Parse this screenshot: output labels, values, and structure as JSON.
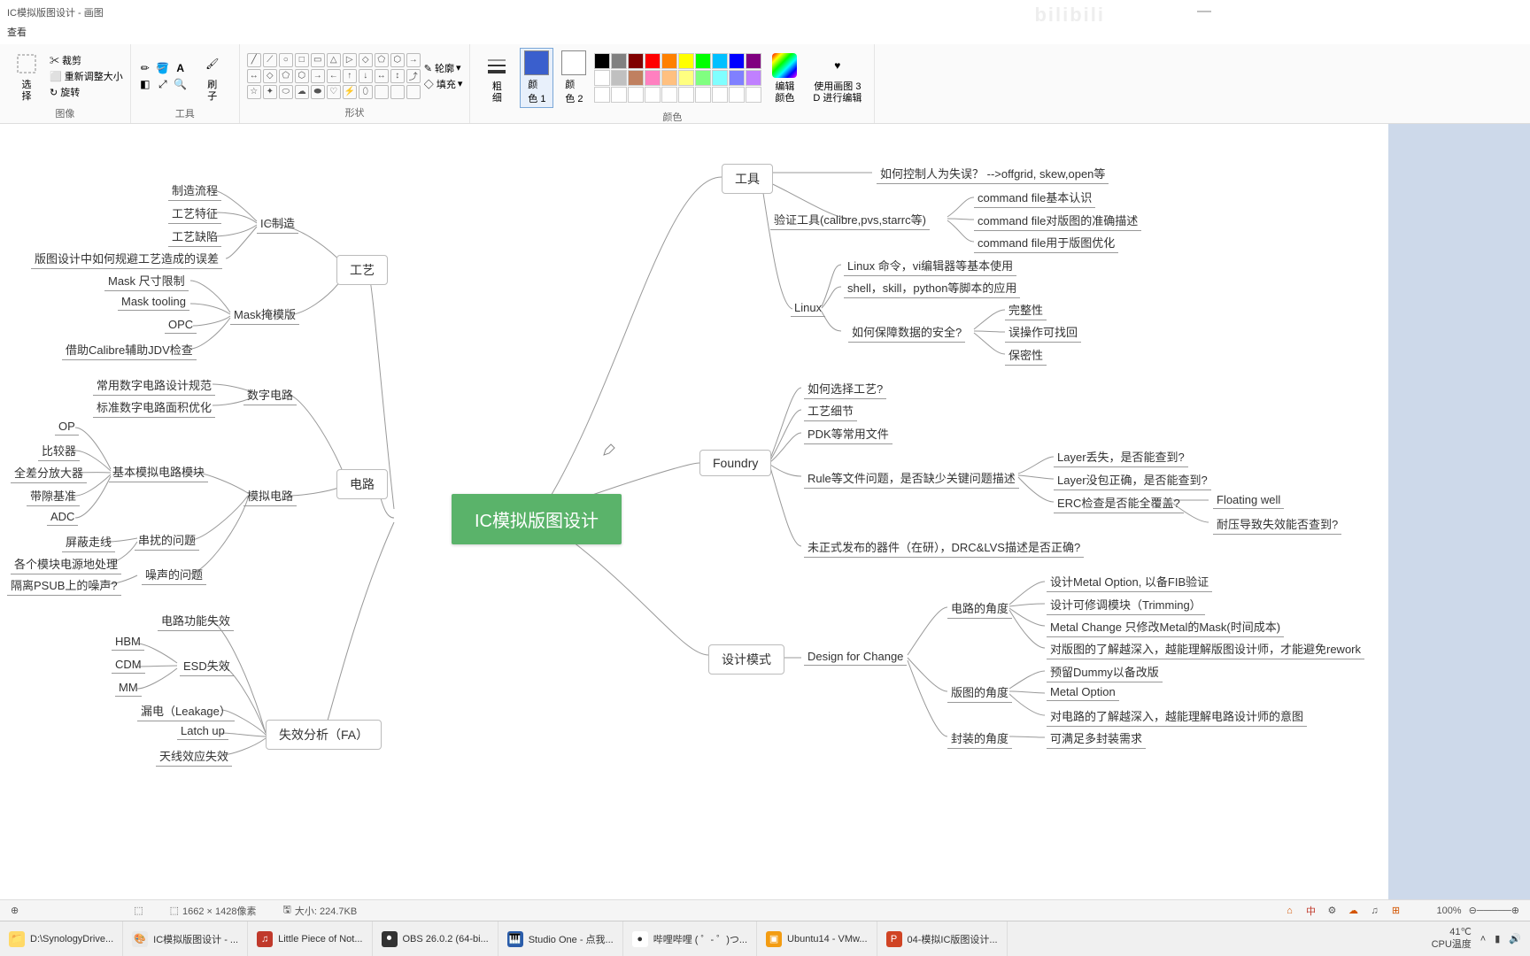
{
  "window": {
    "title": "IC模拟版图设计 - 画图",
    "watermark": "bilibili"
  },
  "menubar": {
    "view": "查看"
  },
  "ribbon": {
    "groups": {
      "image": {
        "label": "图像",
        "select": "选\n择",
        "crop": "✂ 裁剪",
        "resize": "⬜ 重新调整大小",
        "rotate": "↻ 旋转"
      },
      "tools": {
        "label": "工具",
        "brush": "刷\n子"
      },
      "shapes": {
        "label": "形状",
        "outline": "✎ 轮廓",
        "fill": "◇ 填充"
      },
      "colors": {
        "label": "颜色",
        "thick": "粗\n细",
        "c1": "颜\n色 1",
        "c2": "颜\n色 2",
        "edit": "编辑\n颜色",
        "use3d": "使用画图 3\nD 进行编辑"
      }
    },
    "palette": [
      "#000000",
      "#808080",
      "#800000",
      "#ff0000",
      "#ff8000",
      "#ffff00",
      "#00ff00",
      "#00c0ff",
      "#0000ff",
      "#800080",
      "#ffffff",
      "#c0c0c0",
      "#c08060",
      "#ff80c0",
      "#ffc080",
      "#ffff80",
      "#80ff80",
      "#80ffff",
      "#8080ff",
      "#c080ff",
      "#ffffff",
      "#ffffff",
      "#ffffff",
      "#ffffff",
      "#ffffff",
      "#ffffff",
      "#ffffff",
      "#ffffff",
      "#ffffff",
      "#ffffff"
    ],
    "color1": "#3a5fcd",
    "color2": "#ffffff",
    "editgrad": "linear-gradient(135deg,#ff0000,#ffff00,#00ff00,#00ffff,#0000ff,#ff00ff)"
  },
  "mindmap": {
    "center": "IC模拟版图设计",
    "branches": {
      "gongju": "工具",
      "gongyi": "工艺",
      "dianlu": "电路",
      "foundry": "Foundry",
      "shixiaofenxi": "失效分析（FA）",
      "shejimoshi": "设计模式"
    },
    "left": {
      "ic_zhizao": "IC制造",
      "zhizao_liucheng": "制造流程",
      "gongyi_tezheng": "工艺特征",
      "gongyi_quexian": "工艺缺陷",
      "bantu_guibi": "版图设计中如何规避工艺造成的误差",
      "mask_yanmuban": "Mask掩模版",
      "mask_chicun": "Mask 尺寸限制",
      "mask_tooling": "Mask tooling",
      "opc": "OPC",
      "jiezhu_calibre": "借助Calibre辅助JDV检查",
      "shuzi_dianlu": "数字电路",
      "changyong_shuzi": "常用数字电路设计规范",
      "biaozhun_shuzi": "标准数字电路面积优化",
      "moni_dianlu": "模拟电路",
      "jiben_moni": "基本模拟电路模块",
      "op": "OP",
      "bijiaoqi": "比较器",
      "quancha": "全差分放大器",
      "daixi": "带隙基准",
      "adc": "ADC",
      "chuanrao": "串扰的问题",
      "pingbi": "屏蔽走线",
      "gege_dianyuan": "各个模块电源地处理",
      "zaosheng": "噪声的问题",
      "geli_psub": "隔离PSUB上的噪声?",
      "dianlu_shixiao": "电路功能失效",
      "esd_shixiao": "ESD失效",
      "hbm": "HBM",
      "cdm": "CDM",
      "mm": "MM",
      "loudian": "漏电（Leakage）",
      "latchup": "Latch up",
      "tianxian": "天线效应失效"
    },
    "right": {
      "kongzhi_renwei": "如何控制人为失误？ -->offgrid, skew,open等",
      "yanzheng_gongju": "验证工具(calibre,pvs,starrc等)",
      "cmd_jiben": "command file基本认识",
      "cmd_zhunque": "command file对版图的准确描述",
      "cmd_youhua": "command file用于版图优化",
      "linux": "Linux",
      "linux_mingling": "Linux 命令，vi编辑器等基本使用",
      "shell_skill": "shell，skill，python等脚本的应用",
      "ruhe_baozhang": "如何保障数据的安全?",
      "wanzheng": "完整性",
      "wucao": "误操作可找回",
      "baomi": "保密性",
      "ruhe_xuanze": "如何选择工艺?",
      "gongyi_xijie": "工艺细节",
      "pdk_changyong": "PDK等常用文件",
      "rule_wenti": "Rule等文件问题，是否缺少关键问题描述",
      "layer_diushi": "Layer丢失，是否能查到?",
      "layer_meibao": "Layer没包正确，是否能查到?",
      "erc_jiancha": "ERC检查是否能全覆盖?",
      "floating_well": "Floating well",
      "naiya": "耐压导致失效能否查到?",
      "weizhengshi": "未正式发布的器件（在研），DRC&LVS描述是否正确?",
      "dfc": "Design for Change",
      "dianlu_jiaodu": "电路的角度",
      "sheji_metal_opt": "设计Metal Option, 以备FIB验证",
      "sheji_xiutiao": "设计可修调模块（Trimming）",
      "metal_change": "Metal Change 只修改Metal的Mask(时间成本)",
      "dui_bantu_liaojie": "对版图的了解越深入，越能理解版图设计师，才能避免rework",
      "bantu_jiaodu": "版图的角度",
      "yuliu_dummy": "预留Dummy以备改版",
      "metal_option": "Metal Option",
      "dui_dianlu_liaojie": "对电路的了解越深入，越能理解电路设计师的意图",
      "fengzhuang_jiaodu": "封装的角度",
      "kemanzhu": "可满足多封装需求"
    }
  },
  "statusbar": {
    "dims": "1662 × 1428像素",
    "size": "大小: 224.7KB",
    "zoom": "100%"
  },
  "taskbar": {
    "items": [
      {
        "ico": "📁",
        "bg": "#ffd966",
        "label": "D:\\SynologyDrive..."
      },
      {
        "ico": "🎨",
        "bg": "#e8e8e8",
        "label": "IC模拟版图设计 - ..."
      },
      {
        "ico": "♫",
        "bg": "#c0392b",
        "label": "Little Piece of Not..."
      },
      {
        "ico": "⏺",
        "bg": "#333",
        "label": "OBS 26.0.2 (64-bi..."
      },
      {
        "ico": "🎹",
        "bg": "#2a5caa",
        "label": "Studio One - 点我..."
      },
      {
        "ico": "●",
        "bg": "#fff",
        "label": "哔哩哔哩 ( ゜- ゜)つ..."
      },
      {
        "ico": "▣",
        "bg": "#f39c12",
        "label": "Ubuntu14 - VMw..."
      },
      {
        "ico": "P",
        "bg": "#d04424",
        "label": "04-模拟IC版图设计..."
      }
    ],
    "temp": "41℃",
    "cpu": "CPU温度"
  }
}
